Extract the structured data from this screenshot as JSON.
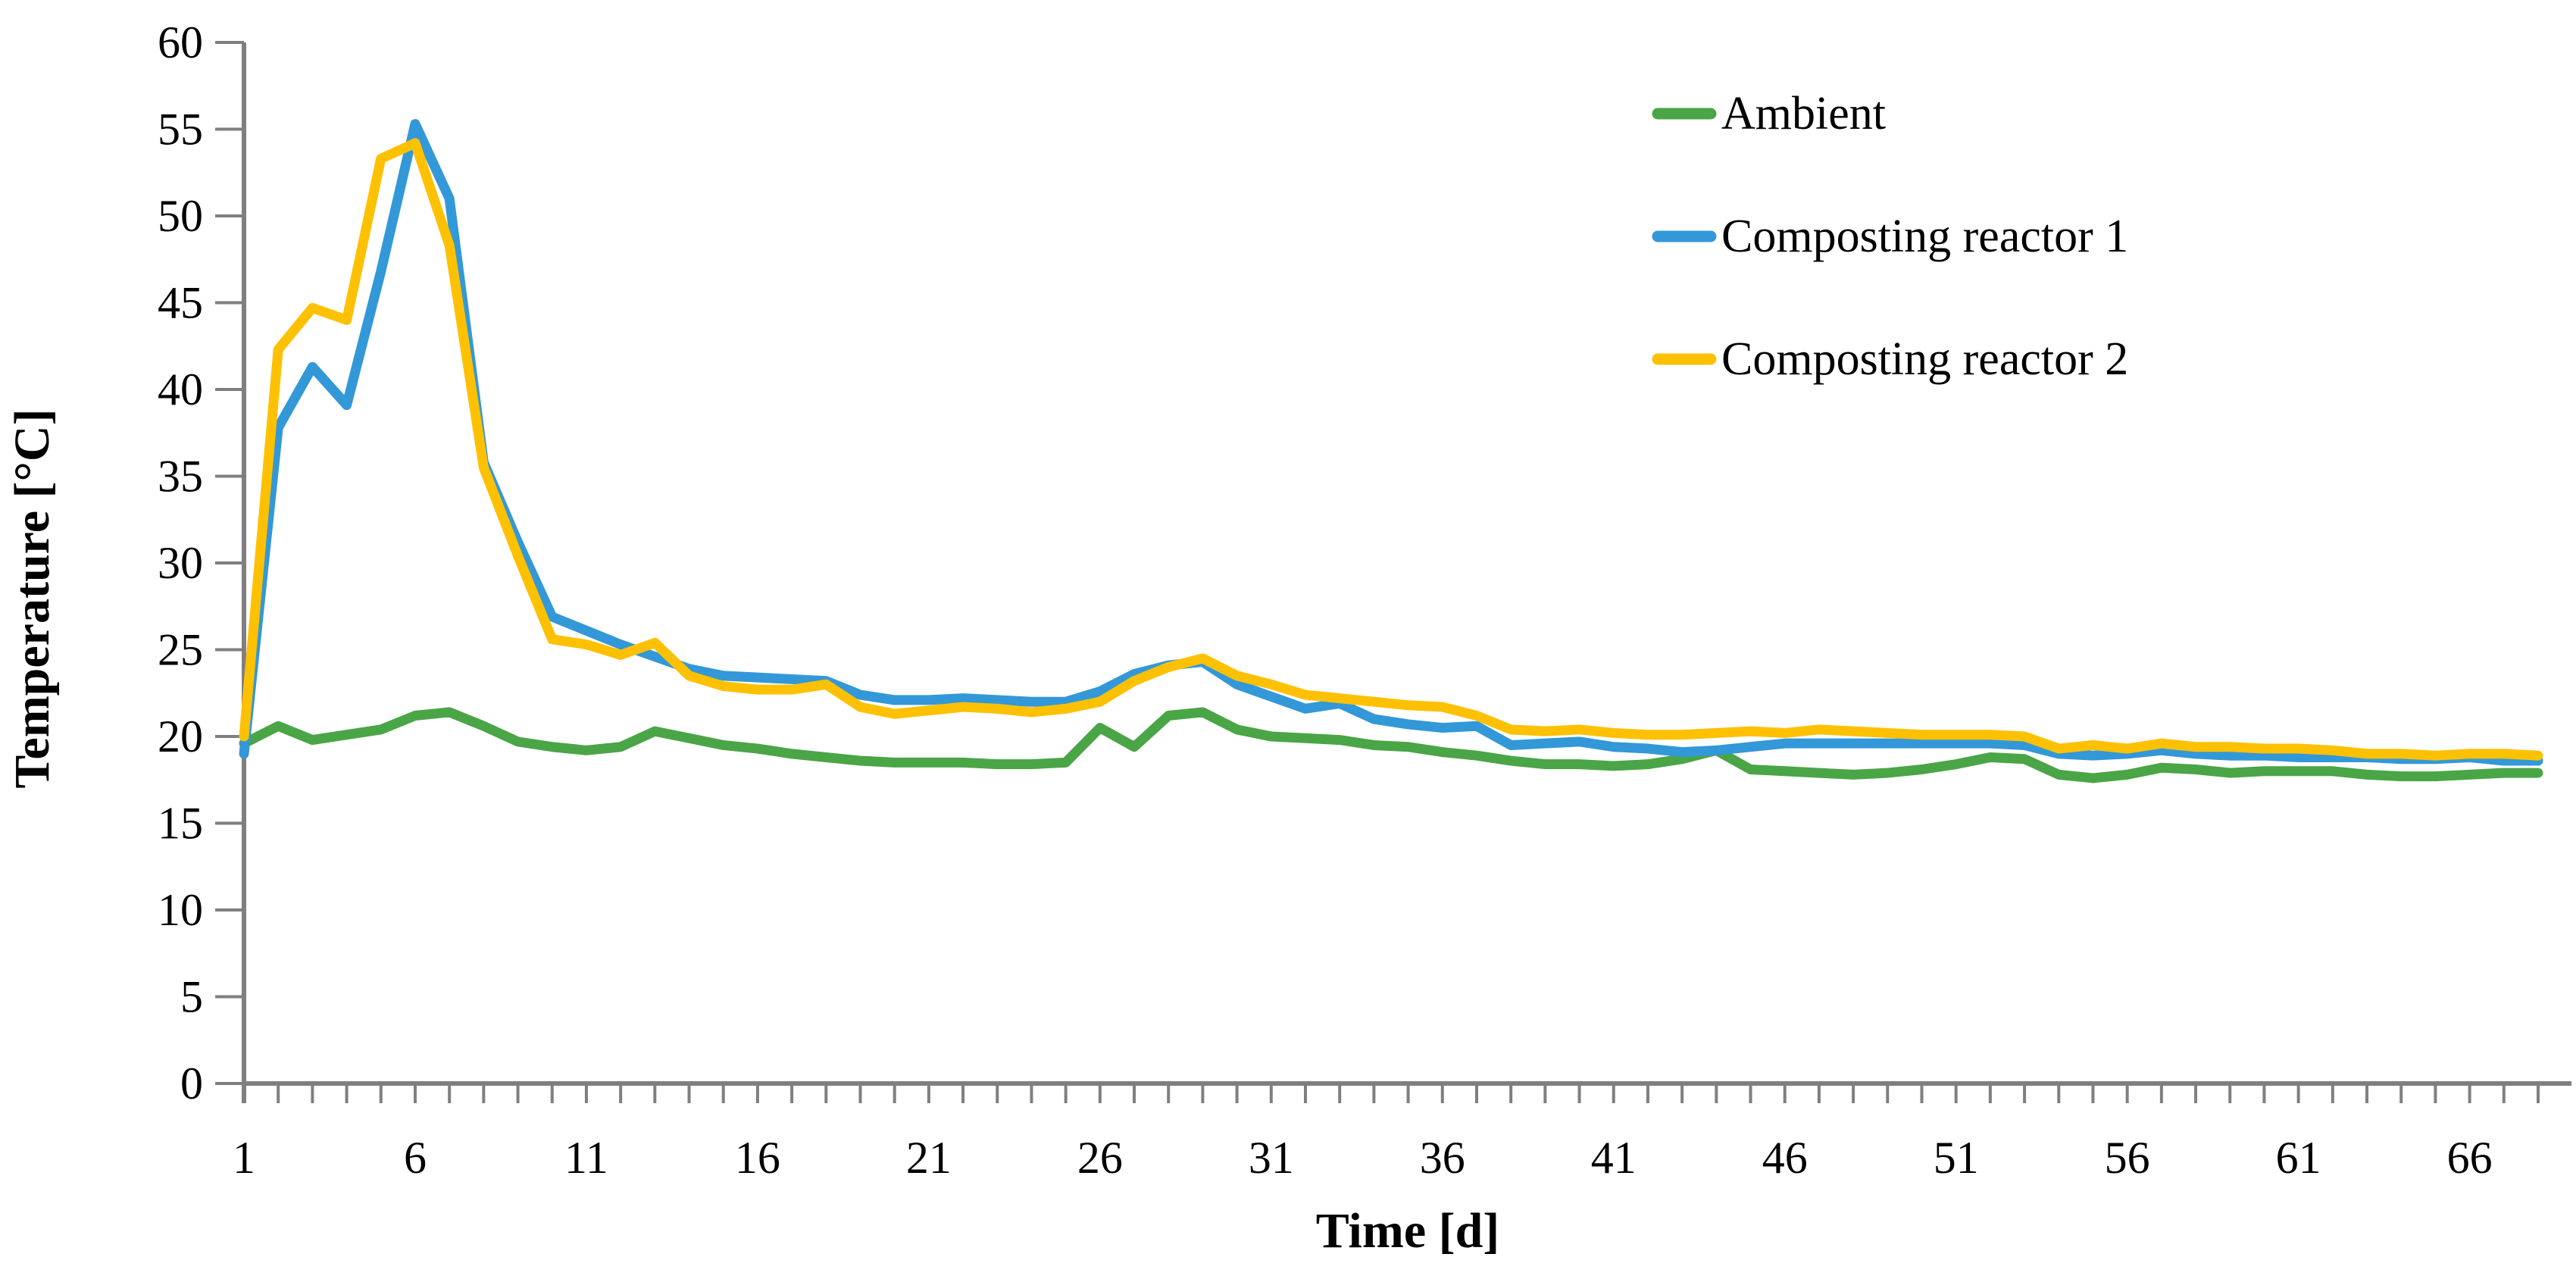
{
  "page": {
    "background": "#ffffff"
  },
  "chart_data": {
    "type": "line",
    "title": "",
    "xlabel": "Time [d]",
    "ylabel": "Temperature [°C]",
    "x_start": 1,
    "x_step": 1,
    "n_points": 68,
    "xlim": [
      1,
      68
    ],
    "ylim": [
      0,
      60
    ],
    "y_tick_step": 5,
    "y_tick_labels": [
      "0",
      "5",
      "10",
      "15",
      "20",
      "25",
      "30",
      "35",
      "40",
      "45",
      "50",
      "55",
      "60"
    ],
    "x_tick_label_days": [
      1,
      6,
      11,
      16,
      21,
      26,
      31,
      36,
      41,
      46,
      51,
      56,
      61,
      66
    ],
    "x_tick_labels": [
      "1",
      "6",
      "11",
      "16",
      "21",
      "26",
      "31",
      "36",
      "41",
      "46",
      "51",
      "56",
      "61",
      "66"
    ],
    "grid": false,
    "legend_position": "upper-right-inside",
    "axis_color": "#7f7f7f",
    "text_color": "#000000",
    "series": [
      {
        "name": "Ambient",
        "color": "#4aa546",
        "values": [
          19.6,
          20.6,
          19.8,
          20.1,
          20.4,
          21.2,
          21.4,
          20.6,
          19.7,
          19.4,
          19.2,
          19.4,
          20.3,
          19.9,
          19.5,
          19.3,
          19.0,
          18.8,
          18.6,
          18.5,
          18.5,
          18.5,
          18.4,
          18.4,
          18.5,
          20.5,
          19.4,
          21.2,
          21.4,
          20.4,
          20.0,
          19.9,
          19.8,
          19.5,
          19.4,
          19.1,
          18.9,
          18.6,
          18.4,
          18.4,
          18.3,
          18.4,
          18.7,
          19.2,
          18.1,
          18.0,
          17.9,
          17.8,
          17.9,
          18.1,
          18.4,
          18.8,
          18.7,
          17.8,
          17.6,
          17.8,
          18.2,
          18.1,
          17.9,
          18.0,
          18.0,
          18.0,
          17.8,
          17.7,
          17.7,
          17.8,
          17.9,
          17.9
        ]
      },
      {
        "name": "Composting reactor 1",
        "color": "#3398d8",
        "values": [
          19.0,
          37.8,
          41.3,
          39.1,
          46.8,
          55.3,
          51.0,
          35.8,
          31.2,
          26.9,
          26.1,
          25.3,
          24.6,
          23.9,
          23.5,
          23.4,
          23.3,
          23.2,
          22.4,
          22.1,
          22.1,
          22.2,
          22.1,
          22.0,
          22.0,
          22.6,
          23.6,
          24.1,
          24.3,
          23.0,
          22.3,
          21.6,
          21.9,
          21.0,
          20.7,
          20.5,
          20.6,
          19.5,
          19.6,
          19.7,
          19.4,
          19.3,
          19.1,
          19.2,
          19.4,
          19.6,
          19.6,
          19.6,
          19.6,
          19.6,
          19.6,
          19.6,
          19.5,
          19.0,
          18.9,
          19.0,
          19.2,
          19.0,
          18.9,
          18.9,
          18.8,
          18.8,
          18.8,
          18.7,
          18.7,
          18.8,
          18.6,
          18.6
        ]
      },
      {
        "name": "Composting reactor 2",
        "color": "#fec102",
        "values": [
          20.0,
          42.3,
          44.7,
          44.0,
          53.3,
          54.2,
          48.3,
          35.5,
          30.4,
          25.6,
          25.3,
          24.7,
          25.4,
          23.5,
          22.9,
          22.7,
          22.7,
          23.0,
          21.7,
          21.3,
          21.5,
          21.7,
          21.6,
          21.4,
          21.6,
          22.0,
          23.2,
          24.0,
          24.5,
          23.5,
          23.0,
          22.4,
          22.2,
          22.0,
          21.8,
          21.7,
          21.2,
          20.4,
          20.3,
          20.4,
          20.2,
          20.1,
          20.1,
          20.2,
          20.3,
          20.2,
          20.4,
          20.3,
          20.2,
          20.1,
          20.1,
          20.1,
          20.0,
          19.3,
          19.5,
          19.3,
          19.6,
          19.4,
          19.4,
          19.3,
          19.3,
          19.2,
          19.0,
          19.0,
          18.9,
          19.0,
          19.0,
          18.9
        ]
      }
    ]
  }
}
